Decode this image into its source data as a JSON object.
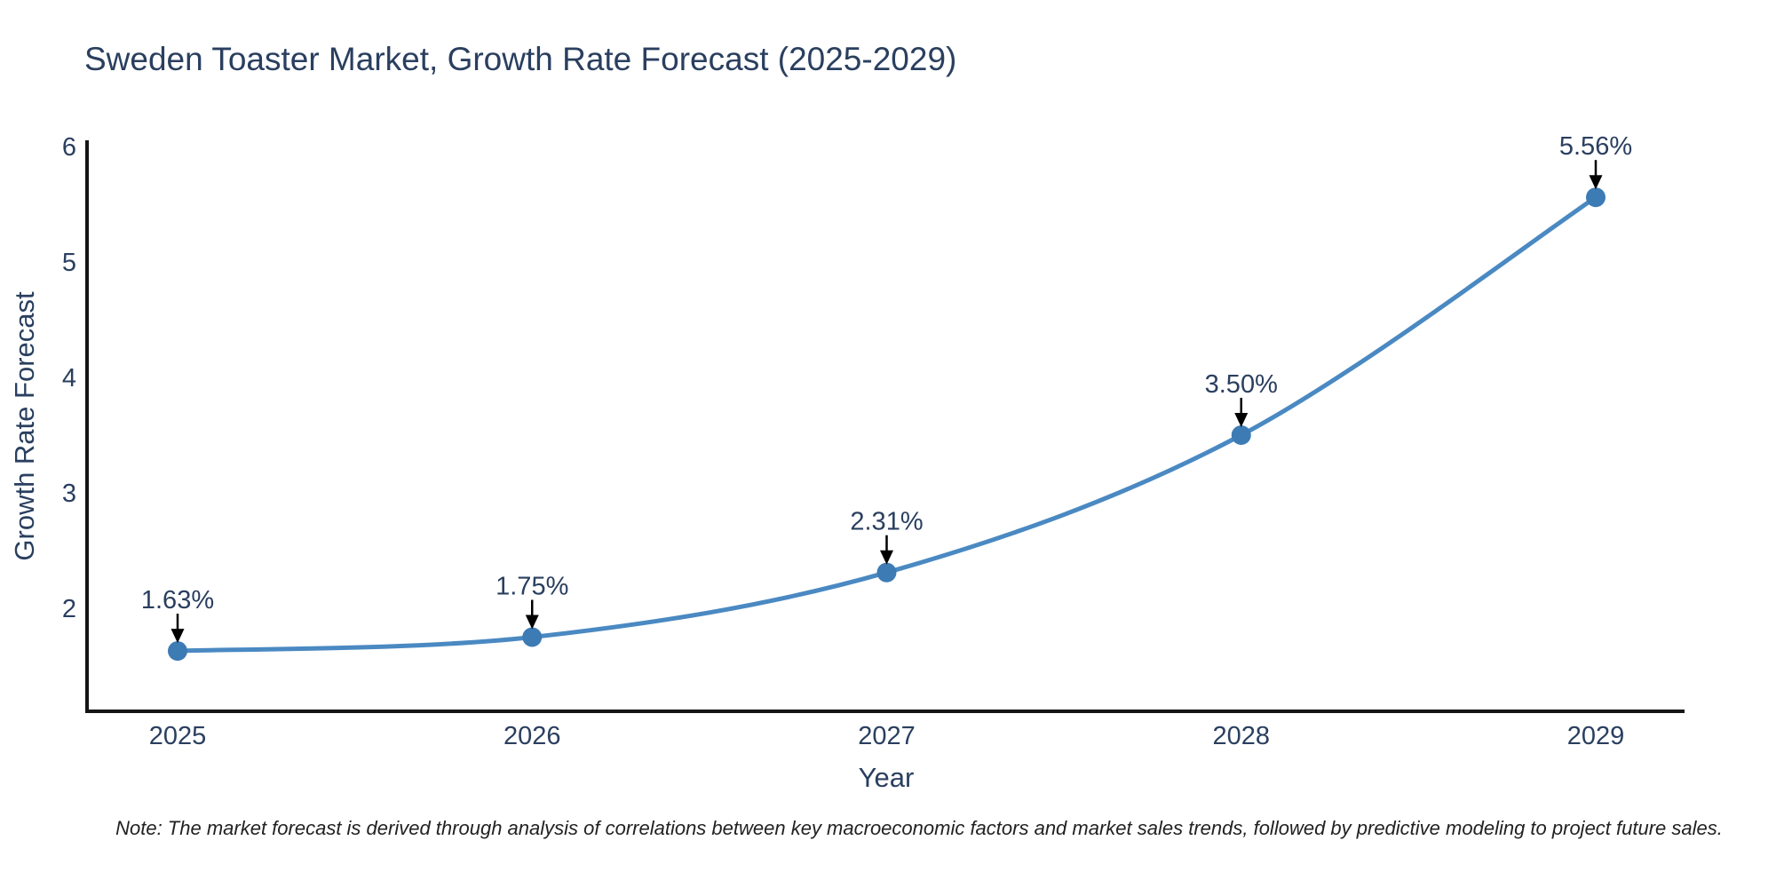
{
  "chart_data": {
    "type": "line",
    "title": "Sweden Toaster Market, Growth Rate Forecast (2025-2029)",
    "xlabel": "Year",
    "ylabel": "Growth Rate Forecast",
    "x": [
      2025,
      2026,
      2027,
      2028,
      2029
    ],
    "y": [
      1.63,
      1.75,
      2.31,
      3.5,
      5.56
    ],
    "point_labels": [
      "1.63%",
      "1.75%",
      "2.31%",
      "3.50%",
      "5.56%"
    ],
    "y_ticks": [
      2,
      3,
      4,
      5,
      6
    ],
    "x_ticks": [
      "2025",
      "2026",
      "2027",
      "2028",
      "2029"
    ],
    "ylim": [
      1.1,
      6.08
    ],
    "xlim": [
      2024.74,
      2029.25
    ],
    "grid": false,
    "legend": "none",
    "line_shape": "spline",
    "annotations": "percentage value label with downward black arrow above each data point",
    "note": "Note: The market forecast is derived through analysis of correlations between key macroeconomic factors and market sales trends, followed by predictive modeling to project future sales."
  },
  "colors": {
    "line": "#4a89c2",
    "marker": "#3d7bb5",
    "arrow": "#000000",
    "axis": "#151515",
    "text": "#2a3f5f",
    "note_text": "#222222",
    "background": "#ffffff"
  }
}
